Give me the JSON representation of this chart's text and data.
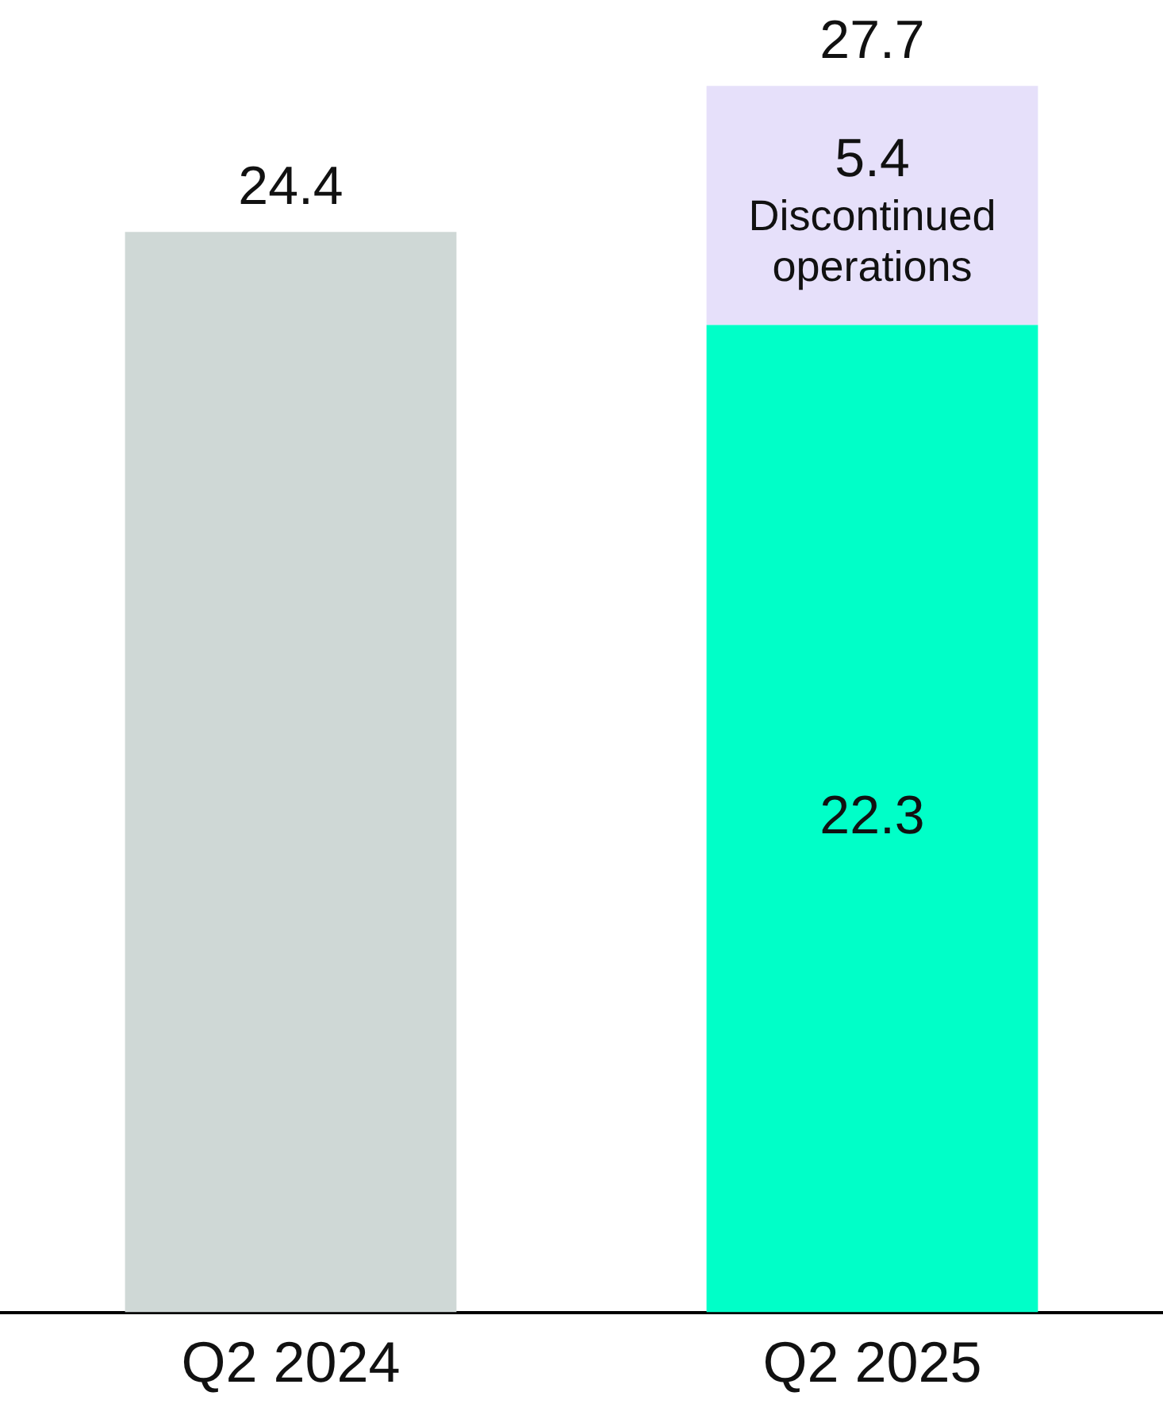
{
  "chart_data": {
    "type": "bar",
    "stacked": true,
    "categories": [
      "Q2 2024",
      "Q2 2025"
    ],
    "series": [
      {
        "colors": [
          "#cfd8d6",
          "#00ffc8"
        ],
        "values": [
          24.4,
          22.3
        ],
        "value_labels": [
          "24.4",
          "22.3"
        ]
      },
      {
        "name": "Discontinued operations",
        "color": "#e6e0fa",
        "values": [
          null,
          5.4
        ],
        "value_labels": [
          null,
          "5.4"
        ]
      }
    ],
    "totals": [
      null,
      "27.7"
    ],
    "grid": false,
    "legend": false
  }
}
